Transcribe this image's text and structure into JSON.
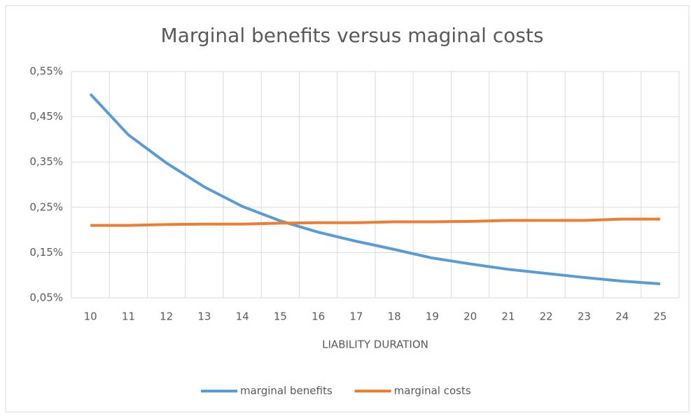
{
  "chart_data": {
    "type": "line",
    "title": "Marginal benefits versus maginal costs",
    "x_label": "LIABILITY DURATION",
    "categories": [
      "10",
      "11",
      "12",
      "13",
      "14",
      "15",
      "16",
      "17",
      "18",
      "19",
      "20",
      "21",
      "22",
      "23",
      "24",
      "25"
    ],
    "series": [
      {
        "name": "marginal benefits",
        "color": "#5b9bd5",
        "values": [
          0.5,
          0.41,
          0.348,
          0.295,
          0.252,
          0.22,
          0.195,
          0.175,
          0.157,
          0.138,
          0.125,
          0.113,
          0.104,
          0.095,
          0.087,
          0.081
        ]
      },
      {
        "name": "marginal costs",
        "color": "#ed7d31",
        "values": [
          0.21,
          0.21,
          0.212,
          0.213,
          0.213,
          0.215,
          0.216,
          0.216,
          0.218,
          0.218,
          0.219,
          0.221,
          0.221,
          0.221,
          0.224,
          0.224
        ]
      }
    ],
    "ylim": [
      0.05,
      0.55
    ],
    "yticks": [
      {
        "value": 0.05,
        "label": "0,05%"
      },
      {
        "value": 0.15,
        "label": "0,15%"
      },
      {
        "value": 0.25,
        "label": "0,25%"
      },
      {
        "value": 0.35,
        "label": "0,35%"
      },
      {
        "value": 0.45,
        "label": "0,45%"
      },
      {
        "value": 0.55,
        "label": "0,55%"
      }
    ],
    "grid": true,
    "legend": "bottom"
  }
}
